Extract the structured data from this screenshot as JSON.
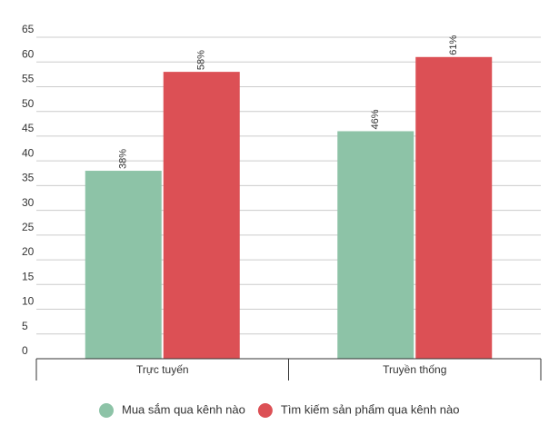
{
  "chart_data": {
    "type": "bar",
    "categories": [
      "Trực tuyến",
      "Truyền thống"
    ],
    "series": [
      {
        "name": "Mua sắm qua kênh nào",
        "color": "#8dc3a7",
        "values": [
          38,
          46
        ],
        "value_labels": [
          "38%",
          "46%"
        ]
      },
      {
        "name": "Tìm kiếm sản phẩm qua kênh nào",
        "color": "#dc5055",
        "values": [
          58,
          61
        ],
        "value_labels": [
          "58%",
          "61%"
        ]
      }
    ],
    "ylim": [
      0,
      65
    ],
    "yticks": [
      0,
      5,
      10,
      15,
      20,
      25,
      30,
      35,
      40,
      45,
      50,
      55,
      60,
      65
    ],
    "grid": true,
    "legend": "bottom"
  }
}
